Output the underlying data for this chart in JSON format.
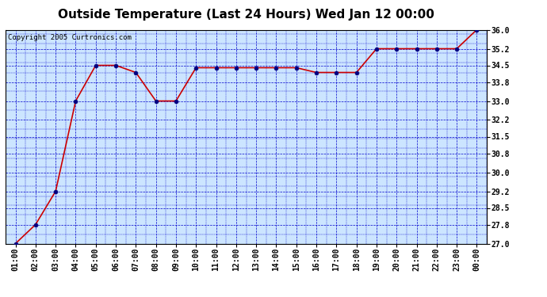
{
  "title": "Outside Temperature (Last 24 Hours) Wed Jan 12 00:00",
  "copyright": "Copyright 2005 Curtronics.com",
  "x_labels": [
    "01:00",
    "02:00",
    "03:00",
    "04:00",
    "05:00",
    "06:00",
    "07:00",
    "08:00",
    "09:00",
    "10:00",
    "11:00",
    "12:00",
    "13:00",
    "14:00",
    "15:00",
    "16:00",
    "17:00",
    "18:00",
    "19:00",
    "20:00",
    "21:00",
    "22:00",
    "23:00",
    "00:00"
  ],
  "x_values": [
    1,
    2,
    3,
    4,
    5,
    6,
    7,
    8,
    9,
    10,
    11,
    12,
    13,
    14,
    15,
    16,
    17,
    18,
    19,
    20,
    21,
    22,
    23,
    24
  ],
  "y_values": [
    27.0,
    27.8,
    29.2,
    33.0,
    34.5,
    34.5,
    34.2,
    33.0,
    33.0,
    34.4,
    34.4,
    34.4,
    34.4,
    34.4,
    34.4,
    34.2,
    34.2,
    34.2,
    35.2,
    35.2,
    35.2,
    35.2,
    35.2,
    36.0
  ],
  "y_ticks": [
    27.0,
    27.8,
    28.5,
    29.2,
    30.0,
    30.8,
    31.5,
    32.2,
    33.0,
    33.8,
    34.5,
    35.2,
    36.0
  ],
  "y_min": 27.0,
  "y_max": 36.0,
  "line_color": "#cc0000",
  "marker_color": "#000080",
  "bg_color": "#cce5ff",
  "outer_bg_color": "#ffffff",
  "grid_color": "#0000cc",
  "title_fontsize": 11,
  "tick_fontsize": 7,
  "copyright_fontsize": 6.5
}
